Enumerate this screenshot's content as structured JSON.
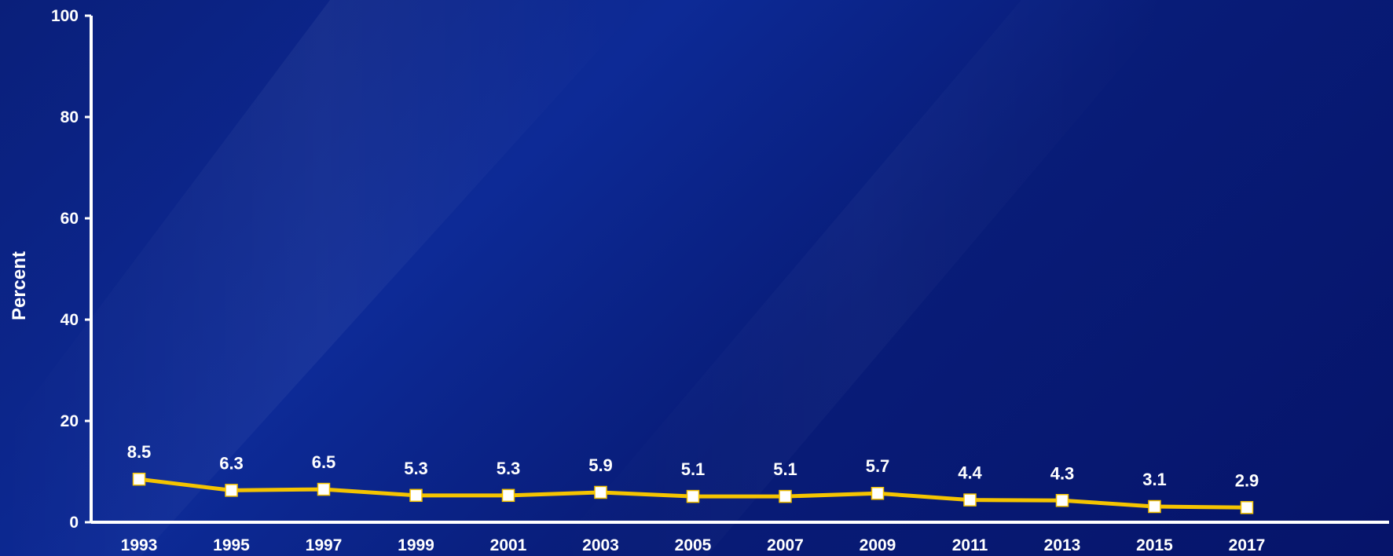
{
  "chart_data": {
    "type": "line",
    "title": "",
    "xlabel": "",
    "ylabel": "Percent",
    "ylim": [
      0,
      100
    ],
    "yticks": [
      0,
      20,
      40,
      60,
      80,
      100
    ],
    "grid": false,
    "legend": "none",
    "categories": [
      "1993",
      "1995",
      "1997",
      "1999",
      "2001",
      "2003",
      "2005",
      "2007",
      "2009",
      "2011",
      "2013",
      "2015",
      "2017"
    ],
    "series": [
      {
        "values": [
          8.5,
          6.3,
          6.5,
          5.3,
          5.3,
          5.9,
          5.1,
          5.1,
          5.7,
          4.4,
          4.3,
          3.1,
          2.9
        ],
        "labels": [
          "8.5",
          "6.3",
          "6.5",
          "5.3",
          "5.3",
          "5.9",
          "5.1",
          "5.1",
          "5.7",
          "4.4",
          "4.3",
          "3.1",
          "2.9"
        ],
        "line_color": "#f5c400",
        "marker_color": "#ffffff"
      }
    ],
    "colors": {
      "axis": "#ffffff",
      "text": "#ffffff",
      "background_start": "#0a1f7a",
      "background_end": "#06146a"
    }
  }
}
